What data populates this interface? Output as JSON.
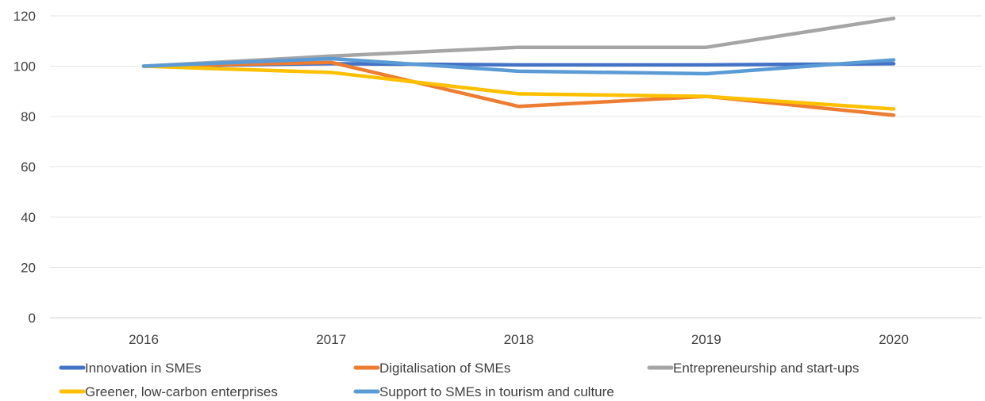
{
  "chart_data": {
    "type": "line",
    "title": "",
    "xlabel": "",
    "ylabel": "",
    "categories": [
      "2016",
      "2017",
      "2018",
      "2019",
      "2020"
    ],
    "ylim": [
      0,
      120
    ],
    "yticks": [
      0,
      20,
      40,
      60,
      80,
      100,
      120
    ],
    "grid": "horizontal",
    "legend_position": "bottom",
    "series": [
      {
        "name": "Innovation in SMEs",
        "color": "#4472C4",
        "values": [
          100,
          101,
          100.5,
          100.5,
          101
        ]
      },
      {
        "name": "Digitalisation of SMEs",
        "color": "#ED7D31",
        "values": [
          100,
          101.5,
          84,
          88,
          80.5
        ]
      },
      {
        "name": "Entrepreneurship and start-ups",
        "color": "#A5A5A5",
        "values": [
          100,
          104,
          107.5,
          107.5,
          119
        ]
      },
      {
        "name": "Greener, low-carbon enterprises",
        "color": "#FFC000",
        "values": [
          100,
          97.5,
          89,
          88,
          83
        ]
      },
      {
        "name": "Support to SMEs in tourism and culture",
        "color": "#5B9BD5",
        "values": [
          100,
          103,
          98,
          97,
          102.5
        ]
      }
    ]
  }
}
